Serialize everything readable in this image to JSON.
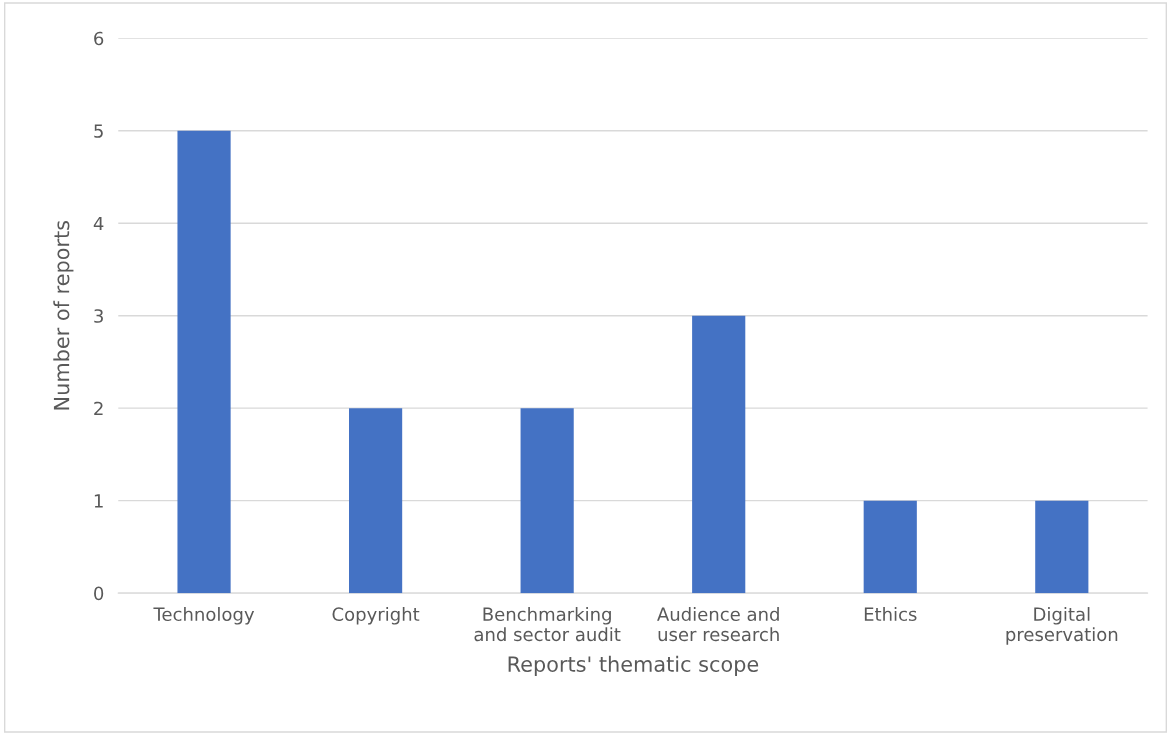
{
  "chart_data": {
    "type": "bar",
    "xlabel": "Reports' thematic scope",
    "ylabel": "Number of reports",
    "categories": [
      "Technology",
      "Copyright",
      "Benchmarking\nand sector audit",
      "Audience and\nuser research",
      "Ethics",
      "Digital\npreservation"
    ],
    "values": [
      5,
      2,
      2,
      3,
      1,
      1
    ],
    "color": "#4472c4",
    "ylim": [
      0,
      6
    ],
    "yticks": [
      0,
      1,
      2,
      3,
      4,
      5,
      6
    ],
    "grid": "y",
    "legend": false
  }
}
